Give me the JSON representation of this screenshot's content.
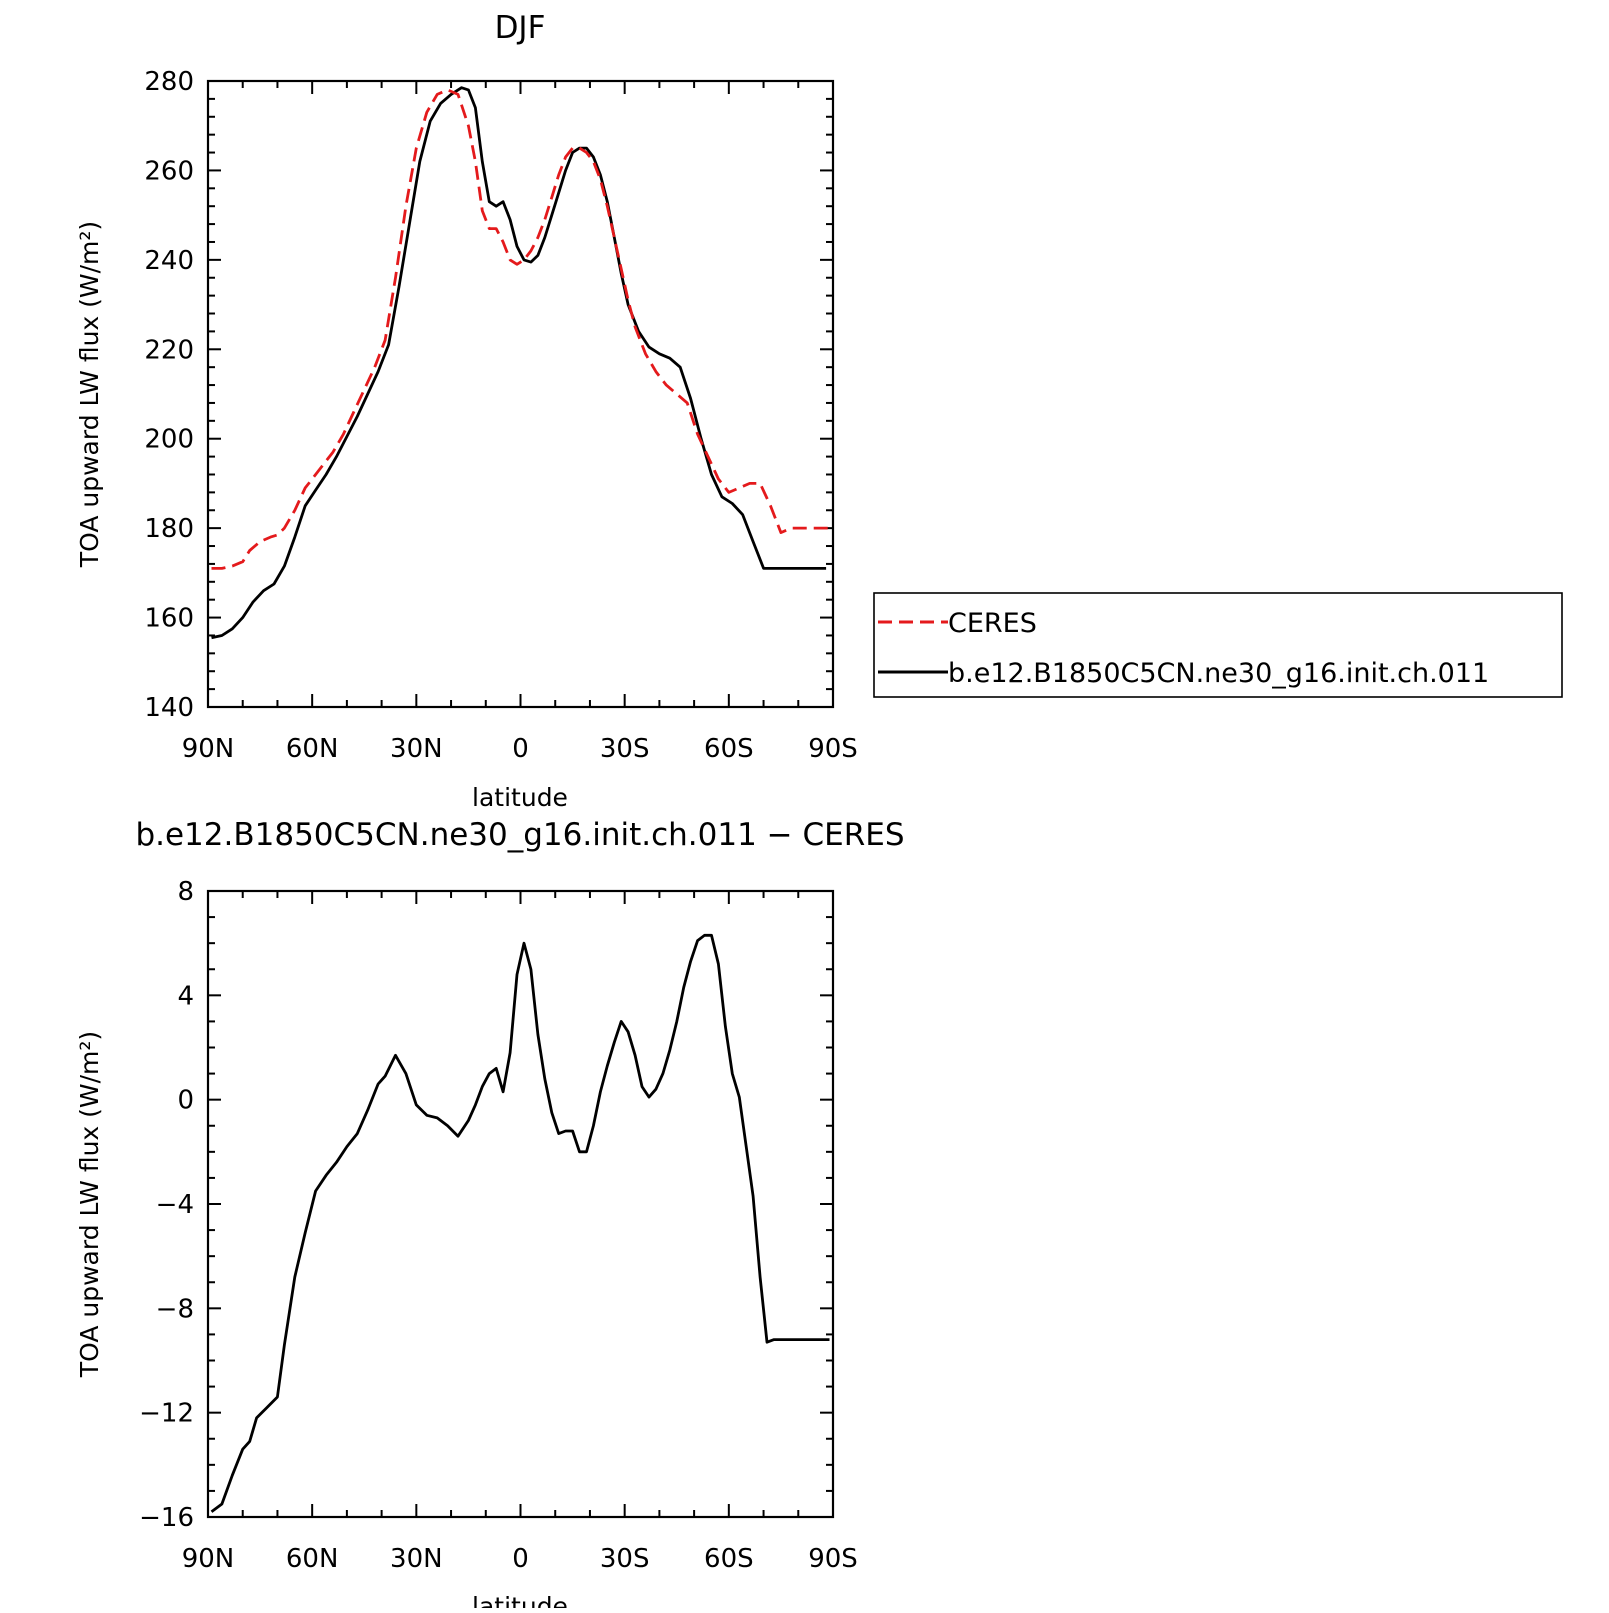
{
  "chart_data": [
    {
      "type": "line",
      "title": "DJF",
      "xlabel": "latitude",
      "ylabel": "TOA upward LW flux (W/m²)",
      "xlim": [
        90,
        -90
      ],
      "ylim": [
        140,
        280
      ],
      "xticks": [
        {
          "value": 90,
          "label": "90N"
        },
        {
          "value": 60,
          "label": "60N"
        },
        {
          "value": 30,
          "label": "30N"
        },
        {
          "value": 0,
          "label": "0"
        },
        {
          "value": -30,
          "label": "30S"
        },
        {
          "value": -60,
          "label": "60S"
        },
        {
          "value": -90,
          "label": "90S"
        }
      ],
      "yticks": [
        140,
        160,
        180,
        200,
        220,
        240,
        260,
        280
      ],
      "legend_position": "right",
      "series": [
        {
          "name": "CERES",
          "color": "#e41a1c",
          "dash": "dashed",
          "x": [
            89,
            86,
            83,
            80,
            78,
            75,
            72,
            70,
            68,
            65,
            62,
            60,
            57,
            54,
            51,
            48,
            45,
            42,
            39,
            36,
            33,
            30,
            27,
            24,
            21,
            18,
            15,
            13,
            11,
            9,
            7,
            5,
            3,
            1,
            -1,
            -3,
            -5,
            -7,
            -9,
            -11,
            -13,
            -15,
            -17,
            -19,
            -21,
            -23,
            -25,
            -27,
            -29,
            -31,
            -33,
            -36,
            -39,
            -42,
            -45,
            -48,
            -51,
            -54,
            -57,
            -60,
            -63,
            -66,
            -69,
            -72,
            -75,
            -78,
            -80,
            -82,
            -84,
            -86,
            -89
          ],
          "y": [
            171,
            171,
            171.5,
            172.5,
            175,
            177,
            178,
            178.5,
            180,
            184,
            189,
            191,
            194,
            197,
            201,
            206,
            211,
            216,
            222,
            236,
            252,
            265,
            273,
            277,
            278,
            277,
            270,
            262,
            251,
            247,
            247,
            244,
            240,
            239,
            240,
            242,
            245,
            249,
            254,
            259,
            263,
            265,
            265,
            264,
            262,
            258,
            252,
            245,
            238,
            231,
            225,
            219,
            215,
            212,
            210,
            208,
            201,
            196,
            191,
            188,
            189,
            190,
            190,
            185,
            179,
            180,
            180,
            180,
            180,
            180,
            180
          ],
          "note_hidden": false
        },
        {
          "name": "b.e12.B1850C5CN.ne30_g16.init.ch.011",
          "color": "#000000",
          "dash": "solid",
          "x": [
            89,
            86,
            83,
            80,
            77,
            74,
            71,
            68,
            65,
            62,
            59,
            56,
            53,
            50,
            47,
            44,
            41,
            38,
            35,
            32,
            29,
            26,
            23,
            20,
            17,
            15,
            13,
            11,
            9,
            7,
            5,
            3,
            1,
            -1,
            -3,
            -5,
            -7,
            -9,
            -11,
            -13,
            -15,
            -17,
            -19,
            -21,
            -23,
            -25,
            -27,
            -29,
            -31,
            -34,
            -37,
            -40,
            -43,
            -46,
            -49,
            -52,
            -55,
            -58,
            -61,
            -64,
            -67,
            -70,
            -73,
            -76,
            -79,
            -82,
            -85,
            -88
          ],
          "y": [
            155.5,
            156,
            157.5,
            160,
            163.5,
            166,
            167.5,
            171.5,
            178,
            185,
            188.5,
            192,
            196,
            200.5,
            205,
            210,
            215,
            221,
            234,
            248,
            262,
            271,
            275,
            277,
            278.5,
            278,
            274,
            262,
            253,
            252,
            253,
            249,
            243,
            240,
            239.5,
            241,
            245,
            250,
            255,
            260,
            264,
            265,
            265,
            263,
            259,
            253,
            245,
            237,
            230,
            224,
            220.5,
            219,
            218,
            216,
            209,
            200,
            192,
            187,
            185.5,
            183,
            177,
            171,
            171,
            171,
            171,
            171,
            171,
            171
          ],
          "note_hidden": false
        }
      ]
    },
    {
      "type": "line",
      "title": "b.e12.B1850C5CN.ne30_g16.init.ch.011 − CERES",
      "xlabel": "latitude",
      "ylabel": "TOA upward LW flux (W/m²)",
      "xlim": [
        90,
        -90
      ],
      "ylim": [
        -16,
        8
      ],
      "xticks": [
        {
          "value": 90,
          "label": "90N"
        },
        {
          "value": 60,
          "label": "60N"
        },
        {
          "value": 30,
          "label": "30N"
        },
        {
          "value": 0,
          "label": "0"
        },
        {
          "value": -30,
          "label": "30S"
        },
        {
          "value": -60,
          "label": "60S"
        },
        {
          "value": -90,
          "label": "90S"
        }
      ],
      "yticks": [
        {
          "value": -16,
          "label": "−16"
        },
        {
          "value": -12,
          "label": "−12"
        },
        {
          "value": -8,
          "label": "−8"
        },
        {
          "value": -4,
          "label": "−4"
        },
        {
          "value": 0,
          "label": "0"
        },
        {
          "value": 4,
          "label": "4"
        },
        {
          "value": 8,
          "label": "8"
        }
      ],
      "series": [
        {
          "color": "#000000",
          "x": [
            89,
            86,
            83,
            80,
            78,
            76,
            73,
            70,
            68,
            65,
            62,
            59,
            56,
            53,
            50,
            47,
            44,
            41,
            39,
            36,
            33,
            30,
            27,
            24,
            21,
            18,
            15,
            13,
            11,
            9,
            7,
            5,
            3,
            1,
            -1,
            -3,
            -5,
            -7,
            -9,
            -11,
            -13,
            -15,
            -17,
            -19,
            -21,
            -23,
            -25,
            -27,
            -29,
            -31,
            -33,
            -35,
            -37,
            -39,
            -41,
            -43,
            -45,
            -47,
            -49,
            -51,
            -53,
            -55,
            -57,
            -59,
            -61,
            -63,
            -65,
            -67,
            -69,
            -71,
            -73,
            -75,
            -77,
            -79,
            -81,
            -83,
            -85,
            -87,
            -89
          ],
          "y": [
            -15.8,
            -15.5,
            -14.4,
            -13.4,
            -13.1,
            -12.2,
            -11.8,
            -11.4,
            -9.4,
            -6.8,
            -5.1,
            -3.5,
            -2.9,
            -2.4,
            -1.8,
            -1.3,
            -0.4,
            0.6,
            0.9,
            1.7,
            1.0,
            -0.2,
            -0.6,
            -0.7,
            -1.0,
            -1.4,
            -0.8,
            -0.2,
            0.5,
            1.0,
            1.2,
            0.3,
            1.8,
            4.8,
            6.0,
            5.0,
            2.5,
            0.8,
            -0.5,
            -1.3,
            -1.2,
            -1.2,
            -2.0,
            -2.0,
            -1.0,
            0.3,
            1.3,
            2.2,
            3.0,
            2.6,
            1.7,
            0.5,
            0.1,
            0.4,
            1.0,
            1.9,
            3.0,
            4.3,
            5.3,
            6.1,
            6.3,
            6.3,
            5.2,
            2.8,
            1.0,
            0.1,
            -1.8,
            -3.7,
            -6.8,
            -9.3,
            -9.2,
            -9.2,
            -9.2,
            -9.2,
            -9.2,
            -9.2,
            -9.2,
            -9.2,
            -9.2
          ]
        }
      ]
    }
  ]
}
